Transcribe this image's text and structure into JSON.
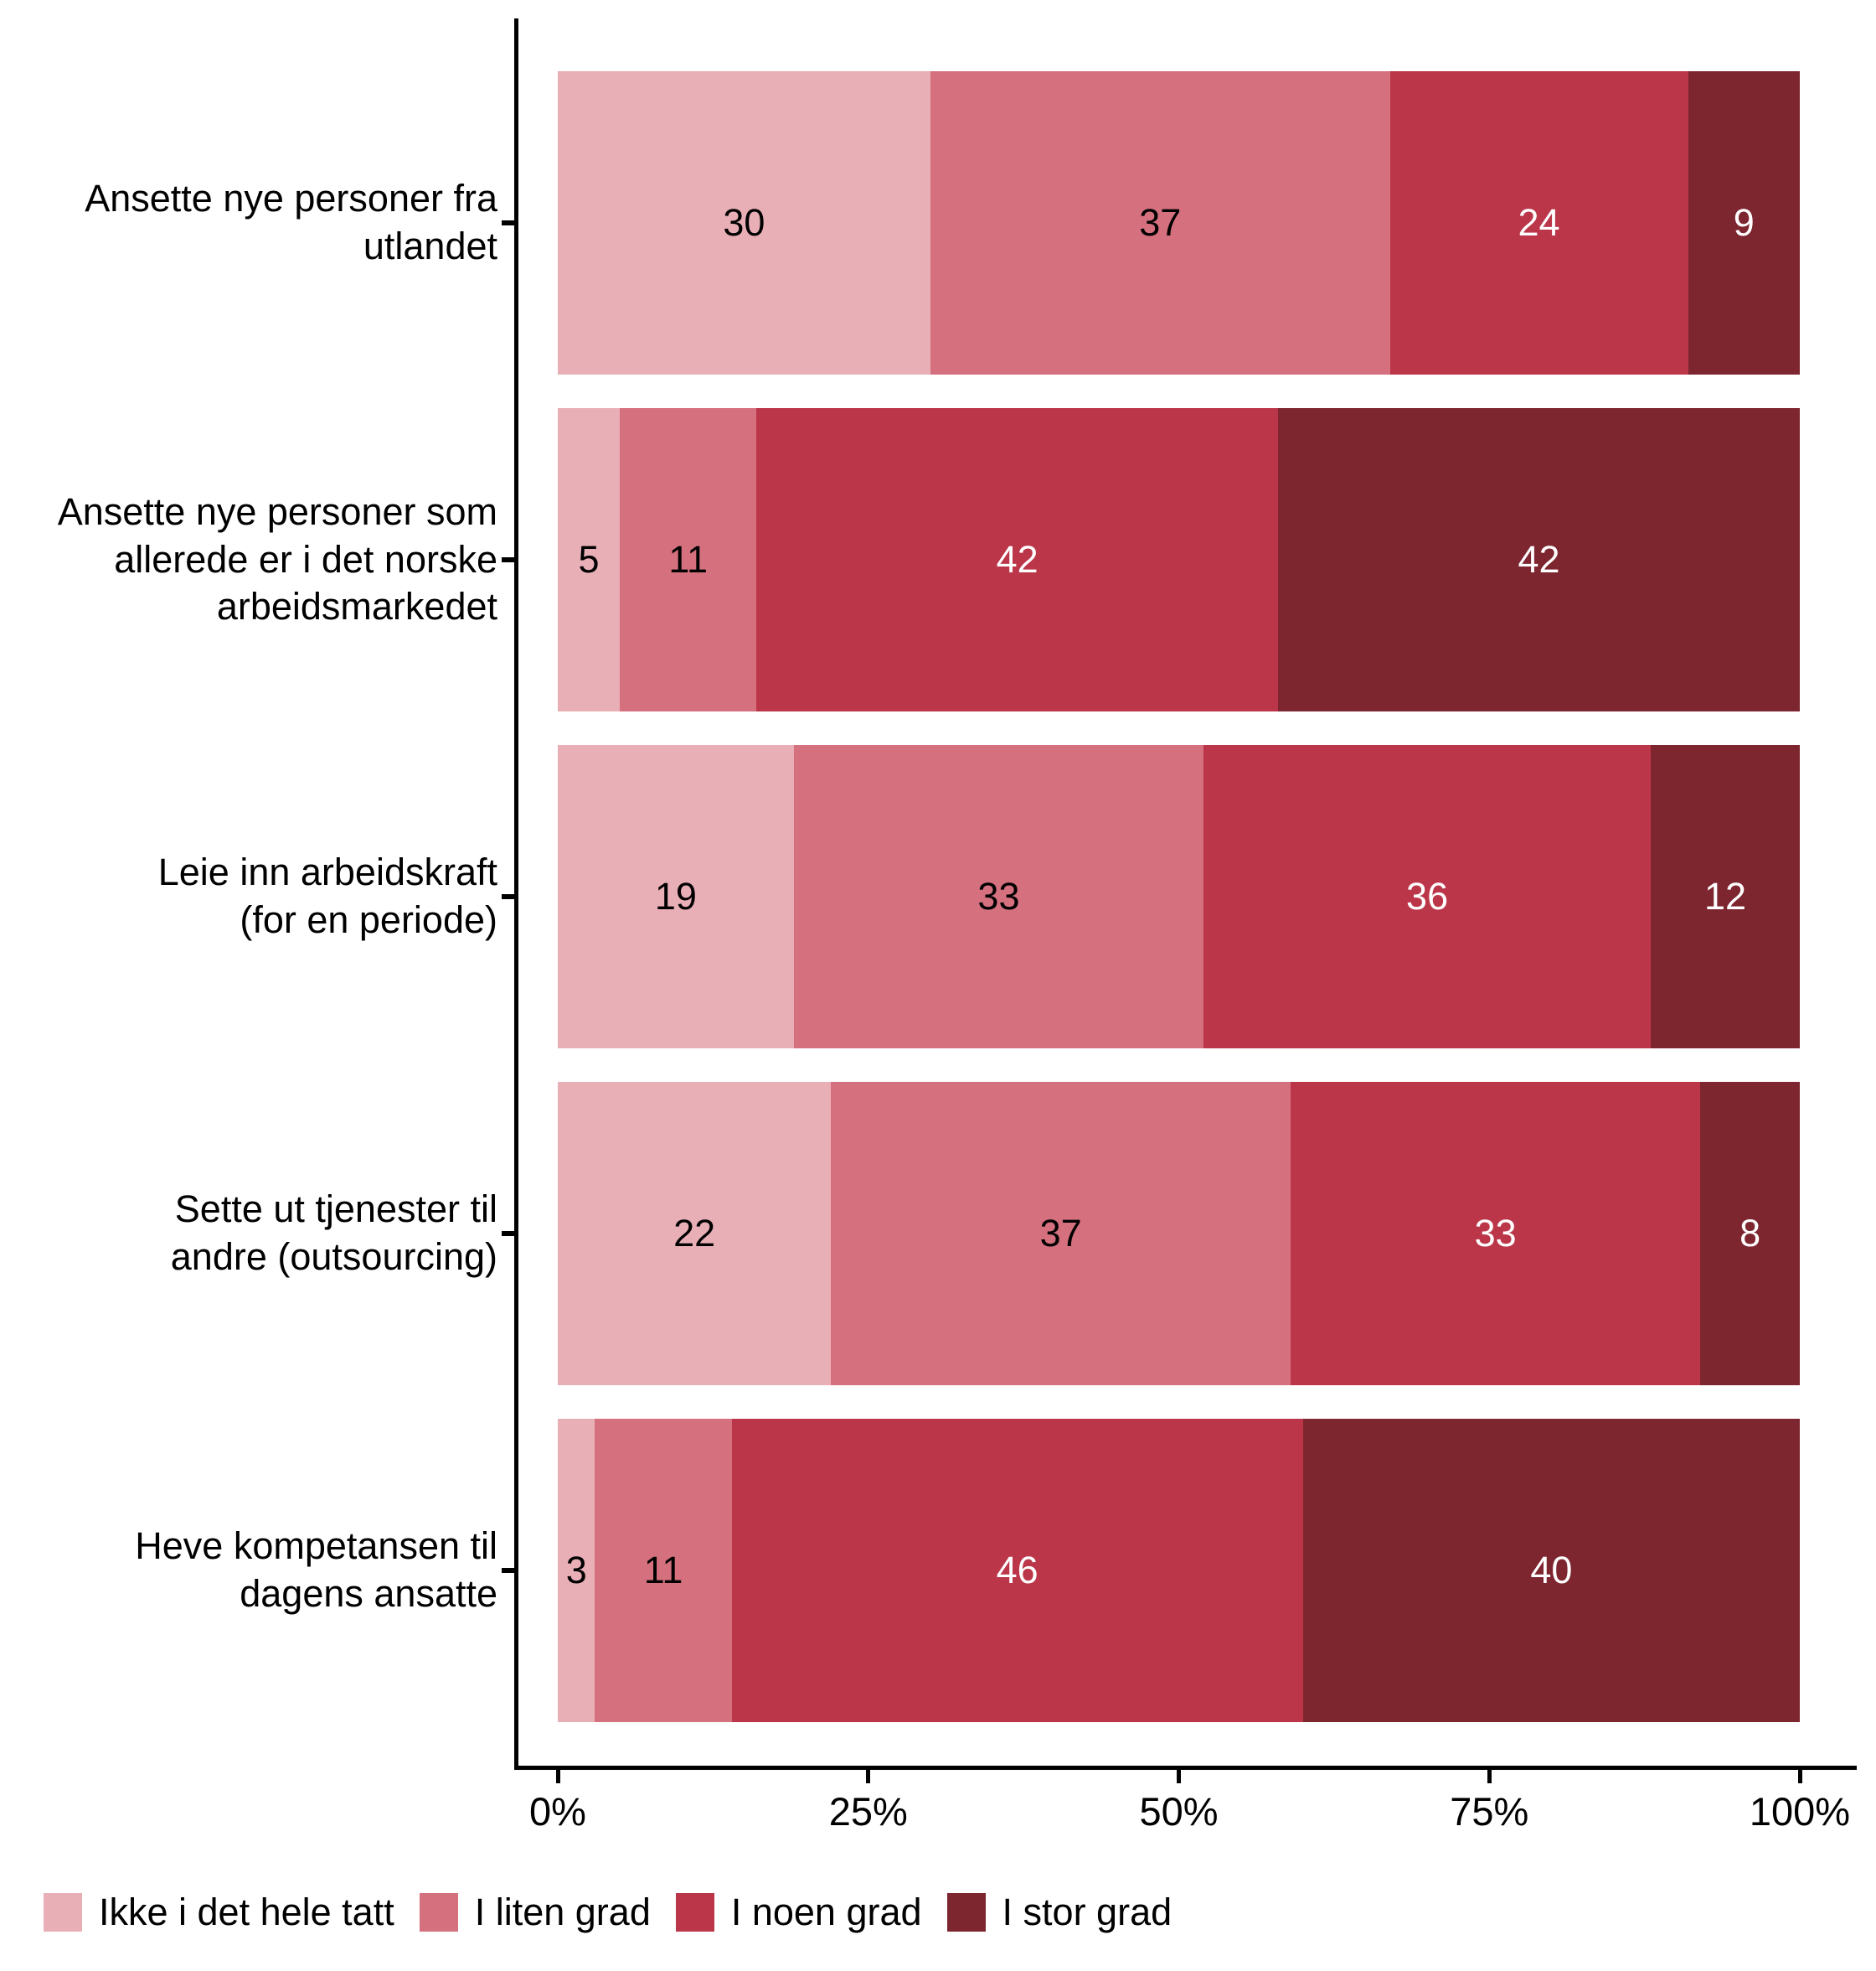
{
  "chart_data": {
    "type": "bar",
    "orientation": "horizontal",
    "stacked": true,
    "value_unit": "percent",
    "xlim": [
      0,
      100
    ],
    "x_tick_values": [
      0,
      25,
      50,
      75,
      100
    ],
    "x_ticks": [
      "0%",
      "25%",
      "50%",
      "75%",
      "100%"
    ],
    "grid": false,
    "legend_position": "bottom-left",
    "axis_color": "#000000",
    "categories": [
      [
        "Ansette nye personer fra",
        "utlandet"
      ],
      [
        "Ansette nye personer som",
        "allerede er i det norske",
        "arbeidsmarkedet"
      ],
      [
        "Leie inn arbeidskraft",
        "(for en periode)"
      ],
      [
        "Sette ut tjenester til",
        "andre (outsourcing)"
      ],
      [
        "Heve kompetansen til",
        "dagens ansatte"
      ]
    ],
    "series": [
      {
        "name": "Ikke i det hele tatt",
        "color": "#E9AFB7",
        "text_color": "#000000",
        "values": [
          30,
          5,
          19,
          22,
          3
        ]
      },
      {
        "name": "I liten grad",
        "color": "#D5707E",
        "text_color": "#000000",
        "values": [
          37,
          11,
          33,
          37,
          11
        ]
      },
      {
        "name": "I noen grad",
        "color": "#BB3649",
        "text_color": "#FFFFFF",
        "values": [
          24,
          42,
          36,
          33,
          46
        ]
      },
      {
        "name": "I stor grad",
        "color": "#7E2630",
        "text_color": "#FFFFFF",
        "values": [
          9,
          42,
          12,
          8,
          40
        ]
      }
    ]
  }
}
